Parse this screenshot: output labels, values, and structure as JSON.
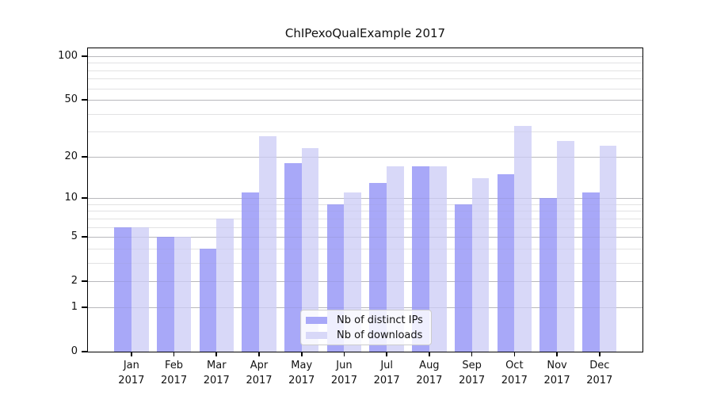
{
  "chart_data": {
    "type": "bar",
    "title": "ChIPexoQualExample 2017",
    "year_label": "2017",
    "categories": [
      "Jan",
      "Feb",
      "Mar",
      "Apr",
      "May",
      "Jun",
      "Jul",
      "Aug",
      "Sep",
      "Oct",
      "Nov",
      "Dec"
    ],
    "series": [
      {
        "name": "Nb of distinct IPs",
        "color": "#a8a8f8",
        "values": [
          6,
          5,
          4,
          11,
          18,
          9,
          13,
          17,
          9,
          15,
          10,
          11
        ]
      },
      {
        "name": "Nb of downloads",
        "color": "#d8d8f8",
        "values": [
          6,
          5,
          7,
          28,
          23,
          11,
          17,
          17,
          14,
          33,
          26,
          24
        ]
      }
    ],
    "y_axis": {
      "scale": "log1p",
      "tick_labels": [
        0,
        1,
        2,
        5,
        10,
        20,
        50,
        100
      ],
      "major_gridlines": [
        1,
        2,
        5,
        10,
        20,
        50,
        100
      ],
      "minor_gridlines": [
        3,
        4,
        6,
        7,
        8,
        9,
        30,
        40,
        60,
        70,
        80,
        90
      ],
      "top_value": 113
    },
    "legend": {
      "position": "lower-center"
    },
    "colors": {
      "major_grid": "#c6c6c6",
      "minor_grid": "#ebebeb",
      "spine": "#000000",
      "background": "#ffffff"
    }
  }
}
